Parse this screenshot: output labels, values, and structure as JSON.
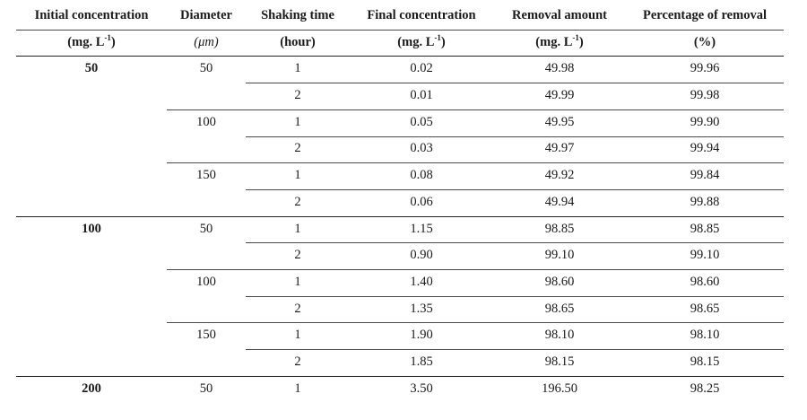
{
  "table": {
    "headers": [
      "Initial concentration",
      "Diameter",
      "Shaking time",
      "Final concentration",
      "Removal amount",
      "Percentage of removal"
    ],
    "units": [
      {
        "base": "(mg. L",
        "sup": "-1",
        "tail": ")"
      },
      {
        "base": "(μm)",
        "sup": "",
        "tail": ""
      },
      {
        "base": "(hour)",
        "sup": "",
        "tail": ""
      },
      {
        "base": "(mg. L",
        "sup": "-1",
        "tail": ")"
      },
      {
        "base": "(mg. L",
        "sup": "-1",
        "tail": ")"
      },
      {
        "base": "(%)",
        "sup": "",
        "tail": ""
      }
    ],
    "rows": [
      {
        "initial": "50",
        "diameter": "50",
        "time": "1",
        "final": "0.02",
        "removal": "49.98",
        "percent": "99.96"
      },
      {
        "initial": "",
        "diameter": "",
        "time": "2",
        "final": "0.01",
        "removal": "49.99",
        "percent": "99.98"
      },
      {
        "initial": "",
        "diameter": "100",
        "time": "1",
        "final": "0.05",
        "removal": "49.95",
        "percent": "99.90"
      },
      {
        "initial": "",
        "diameter": "",
        "time": "2",
        "final": "0.03",
        "removal": "49.97",
        "percent": "99.94"
      },
      {
        "initial": "",
        "diameter": "150",
        "time": "1",
        "final": "0.08",
        "removal": "49.92",
        "percent": "99.84"
      },
      {
        "initial": "",
        "diameter": "",
        "time": "2",
        "final": "0.06",
        "removal": "49.94",
        "percent": "99.88"
      },
      {
        "initial": "100",
        "diameter": "50",
        "time": "1",
        "final": "1.15",
        "removal": "98.85",
        "percent": "98.85"
      },
      {
        "initial": "",
        "diameter": "",
        "time": "2",
        "final": "0.90",
        "removal": "99.10",
        "percent": "99.10"
      },
      {
        "initial": "",
        "diameter": "100",
        "time": "1",
        "final": "1.40",
        "removal": "98.60",
        "percent": "98.60"
      },
      {
        "initial": "",
        "diameter": "",
        "time": "2",
        "final": "1.35",
        "removal": "98.65",
        "percent": "98.65"
      },
      {
        "initial": "",
        "diameter": "150",
        "time": "1",
        "final": "1.90",
        "removal": "98.10",
        "percent": "98.10"
      },
      {
        "initial": "",
        "diameter": "",
        "time": "2",
        "final": "1.85",
        "removal": "98.15",
        "percent": "98.15"
      },
      {
        "initial": "200",
        "diameter": "50",
        "time": "1",
        "final": "3.50",
        "removal": "196.50",
        "percent": "98.25"
      }
    ]
  }
}
